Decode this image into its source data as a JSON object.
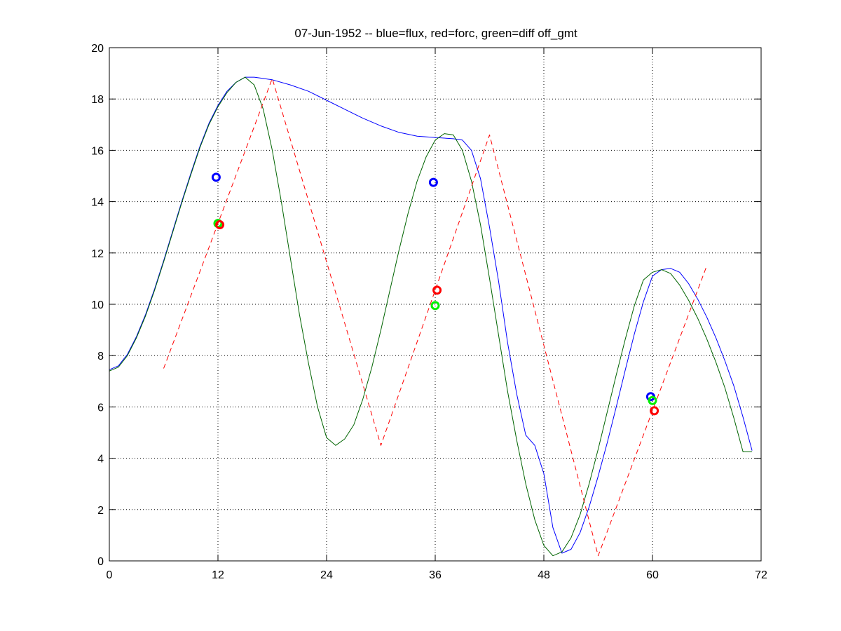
{
  "chart_data": {
    "type": "line",
    "title": "07-Jun-1952 -- blue=flux, red=forc, green=diff off_gmt",
    "xlabel": "",
    "ylabel": "",
    "xlim": [
      0,
      72
    ],
    "ylim": [
      0,
      20
    ],
    "xticks": [
      0,
      12,
      24,
      36,
      48,
      60,
      72
    ],
    "yticks": [
      0,
      2,
      4,
      6,
      8,
      10,
      12,
      14,
      16,
      18,
      20
    ],
    "grid": true,
    "legend": "none",
    "colors": {
      "blue": "#0000ff",
      "red": "#ff0000",
      "green": "#006400",
      "lime": "#00ee00"
    },
    "series": [
      {
        "color": "#0000ff",
        "style": "solid",
        "x": [
          0,
          1,
          2,
          3,
          4,
          5,
          6,
          7,
          8,
          9,
          10,
          11,
          12,
          13,
          14,
          15,
          16,
          17,
          18,
          20,
          22,
          24,
          26,
          28,
          30,
          32,
          34,
          36,
          38,
          39,
          40,
          41,
          42,
          43,
          44,
          45,
          46,
          47,
          48,
          49,
          50,
          51,
          52,
          53,
          54,
          55,
          56,
          57,
          58,
          59,
          60,
          61,
          62,
          63,
          64,
          65,
          66,
          67,
          68,
          69,
          70,
          71
        ],
        "y": [
          7.45,
          7.6,
          8.05,
          8.75,
          9.6,
          10.6,
          11.7,
          12.85,
          14.0,
          15.1,
          16.15,
          17.05,
          17.75,
          18.3,
          18.65,
          18.85,
          18.85,
          18.8,
          18.75,
          18.55,
          18.3,
          17.95,
          17.6,
          17.25,
          16.95,
          16.7,
          16.55,
          16.5,
          16.45,
          16.4,
          16.0,
          14.9,
          13.0,
          10.9,
          8.5,
          6.5,
          4.9,
          4.5,
          3.4,
          1.3,
          0.3,
          0.45,
          1.1,
          2.1,
          3.3,
          4.6,
          6.0,
          7.45,
          8.85,
          10.1,
          11.1,
          11.35,
          11.4,
          11.25,
          10.8,
          10.2,
          9.5,
          8.7,
          7.8,
          6.8,
          5.6,
          4.3
        ]
      },
      {
        "color": "#006400",
        "style": "solid",
        "x": [
          0,
          1,
          2,
          3,
          4,
          5,
          6,
          7,
          8,
          9,
          10,
          11,
          12,
          13,
          14,
          15,
          16,
          17,
          18,
          19,
          20,
          21,
          22,
          23,
          24,
          25,
          26,
          27,
          28,
          29,
          30,
          31,
          32,
          33,
          34,
          35,
          36,
          37,
          38,
          39,
          40,
          41,
          42,
          43,
          44,
          45,
          46,
          47,
          48,
          49,
          50,
          51,
          52,
          53,
          54,
          55,
          56,
          57,
          58,
          59,
          60,
          61,
          62,
          63,
          64,
          65,
          66,
          67,
          68,
          69,
          70,
          71
        ],
        "y": [
          7.4,
          7.55,
          8.0,
          8.7,
          9.55,
          10.55,
          11.65,
          12.8,
          13.95,
          15.05,
          16.1,
          17.0,
          17.7,
          18.25,
          18.65,
          18.85,
          18.55,
          17.6,
          16.0,
          14.0,
          11.8,
          9.6,
          7.7,
          6.0,
          4.8,
          4.5,
          4.75,
          5.3,
          6.3,
          7.55,
          9.0,
          10.55,
          12.1,
          13.55,
          14.8,
          15.75,
          16.4,
          16.65,
          16.6,
          16.0,
          14.8,
          13.1,
          11.0,
          8.8,
          6.6,
          4.7,
          3.0,
          1.6,
          0.6,
          0.2,
          0.35,
          0.9,
          1.8,
          3.0,
          4.35,
          5.8,
          7.25,
          8.65,
          9.95,
          10.95,
          11.25,
          11.35,
          11.2,
          10.75,
          10.15,
          9.45,
          8.65,
          7.75,
          6.75,
          5.55,
          4.25,
          4.25
        ]
      },
      {
        "color": "#ff0000",
        "style": "dashed",
        "x": [
          6,
          18,
          30,
          42,
          54,
          66
        ],
        "y": [
          7.5,
          18.8,
          4.5,
          16.6,
          0.2,
          11.5
        ]
      }
    ],
    "markers": [
      {
        "color": "#0000ff",
        "x": 11.8,
        "y": 14.95
      },
      {
        "color": "#0000ff",
        "x": 35.8,
        "y": 14.75
      },
      {
        "color": "#0000ff",
        "x": 59.8,
        "y": 6.4
      },
      {
        "color": "#00ee00",
        "x": 12.0,
        "y": 13.15
      },
      {
        "color": "#00ee00",
        "x": 36.0,
        "y": 9.95
      },
      {
        "color": "#00ee00",
        "x": 60.0,
        "y": 6.25
      },
      {
        "color": "#ff0000",
        "x": 12.2,
        "y": 13.1
      },
      {
        "color": "#ff0000",
        "x": 36.2,
        "y": 10.55
      },
      {
        "color": "#ff0000",
        "x": 60.2,
        "y": 5.85
      }
    ]
  }
}
